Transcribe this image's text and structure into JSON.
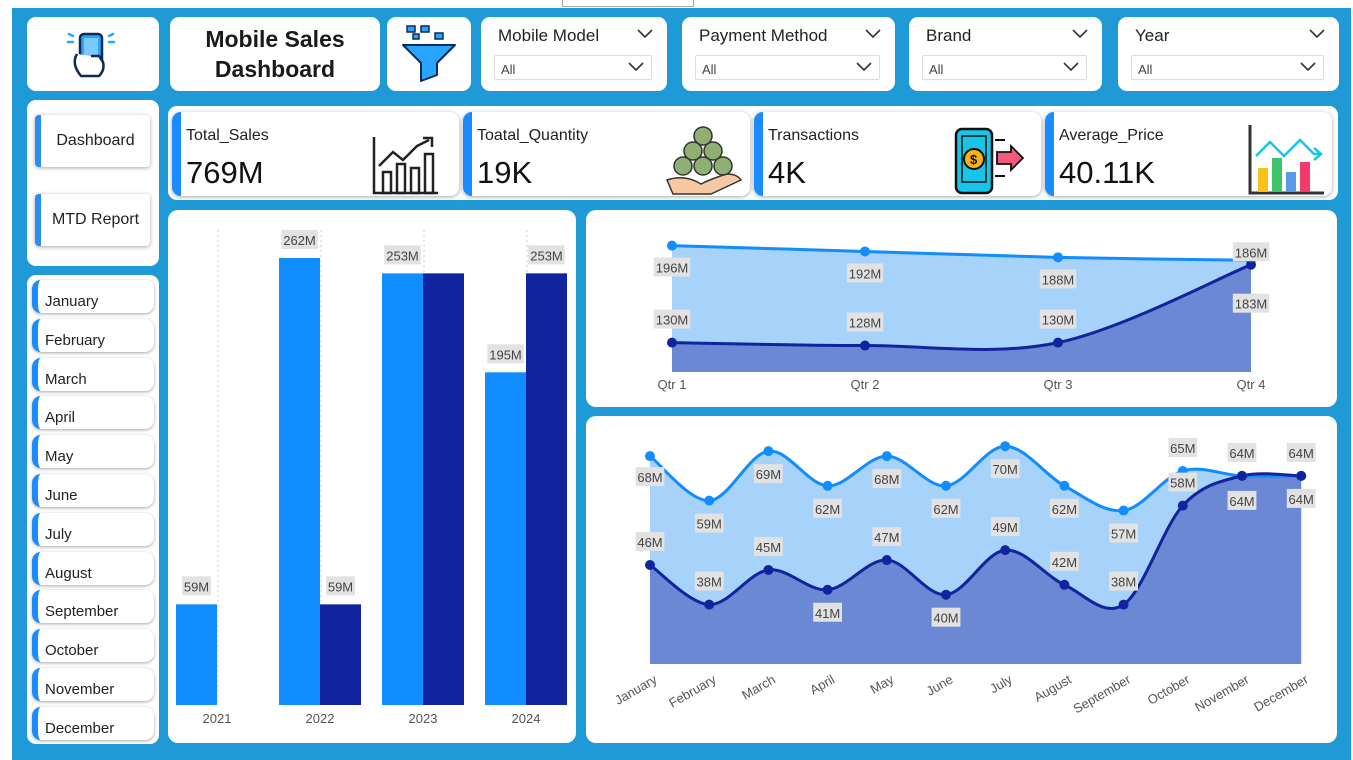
{
  "title": "Mobile Sales Dashboard",
  "title_line1": "Mobile Sales",
  "title_line2": "Dashboard",
  "filters": [
    {
      "label": "Mobile Model",
      "value": "All"
    },
    {
      "label": "Payment Method",
      "value": "All"
    },
    {
      "label": "Brand",
      "value": "All"
    },
    {
      "label": "Year",
      "value": "All"
    }
  ],
  "nav": {
    "dashboard": "Dashboard",
    "mtd": "MTD Report"
  },
  "months": [
    "January",
    "February",
    "March",
    "April",
    "May",
    "June",
    "July",
    "August",
    "September",
    "October",
    "November",
    "December"
  ],
  "kpis": [
    {
      "label": "Total_Sales",
      "value": "769M",
      "icon": "growth-chart-icon"
    },
    {
      "label": "Toatal_Quantity",
      "value": "19K",
      "icon": "coins-hand-icon"
    },
    {
      "label": "Transactions",
      "value": "4K",
      "icon": "mobile-payment-icon"
    },
    {
      "label": "Average_Price",
      "value": "40.11K",
      "icon": "bar-chart-icon"
    }
  ],
  "colors": {
    "light": "#118dff",
    "dark": "#12239e",
    "frame": "#1f9ad6",
    "area_light": "#a7d3fb",
    "area_dark": "#6a88d4"
  },
  "chart_data": [
    {
      "type": "bar",
      "categories": [
        "2021",
        "2022",
        "2023",
        "2024"
      ],
      "series": [
        {
          "values": [
            59,
            262,
            253,
            195
          ],
          "labels": [
            "59M",
            "262M",
            "253M",
            "195M"
          ],
          "color": "#118dff"
        },
        {
          "values": [
            null,
            59,
            253,
            253
          ],
          "labels": [
            "",
            "59M",
            "",
            "253M"
          ],
          "color": "#12239e"
        }
      ],
      "ylim": [
        0,
        280
      ]
    },
    {
      "type": "area",
      "categories": [
        "Qtr 1",
        "Qtr 2",
        "Qtr 3",
        "Qtr 4"
      ],
      "series": [
        {
          "values": [
            196,
            192,
            188,
            186
          ],
          "labels": [
            "196M",
            "192M",
            "188M",
            "186M"
          ],
          "color": "#118dff"
        },
        {
          "values": [
            130,
            128,
            130,
            183
          ],
          "labels": [
            "130M",
            "128M",
            "130M",
            "183M"
          ],
          "color": "#12239e"
        }
      ]
    },
    {
      "type": "area",
      "categories": [
        "January",
        "February",
        "March",
        "April",
        "May",
        "June",
        "July",
        "August",
        "September",
        "October",
        "November",
        "December"
      ],
      "series": [
        {
          "values": [
            68,
            59,
            69,
            62,
            68,
            62,
            70,
            62,
            57,
            65,
            64,
            64
          ],
          "labels": [
            "68M",
            "59M",
            "69M",
            "62M",
            "68M",
            "62M",
            "70M",
            "62M",
            "57M",
            "65M",
            "64M",
            "64M"
          ],
          "color": "#118dff"
        },
        {
          "values": [
            46,
            38,
            45,
            41,
            47,
            40,
            49,
            42,
            38,
            58,
            64,
            64
          ],
          "labels": [
            "46M",
            "38M",
            "45M",
            "41M",
            "47M",
            "40M",
            "49M",
            "42M",
            "38M",
            "58M",
            "64M",
            "64M"
          ],
          "color": "#12239e"
        }
      ]
    }
  ]
}
